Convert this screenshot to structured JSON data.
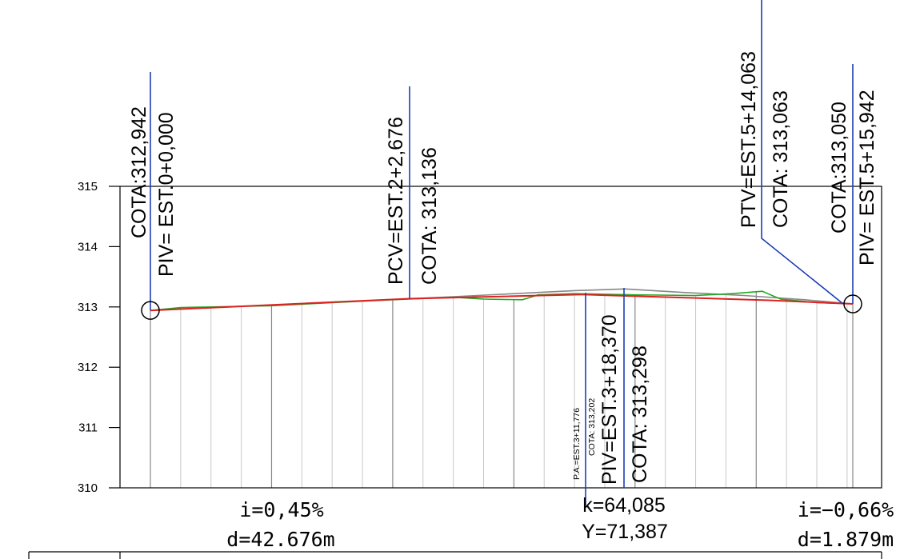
{
  "chart_data": {
    "type": "line",
    "title": "",
    "xlabel": "",
    "ylabel": "",
    "ylim": [
      310,
      315
    ],
    "y_ticks": [
      "315",
      "314",
      "313",
      "312",
      "311",
      "310"
    ],
    "grid": true,
    "series": [
      {
        "color": "#dd2222",
        "points": [
          [
            0,
            312.942
          ],
          [
            42.676,
            313.136
          ],
          [
            71.3,
            313.205
          ],
          [
            102.09,
            313.11
          ],
          [
            115.942,
            313.05
          ]
        ]
      },
      {
        "color": "#22aa22",
        "points": [
          [
            0,
            312.942
          ],
          [
            5,
            312.99
          ],
          [
            10,
            313.0
          ],
          [
            20,
            313.02
          ],
          [
            30,
            313.07
          ],
          [
            40,
            313.12
          ],
          [
            50,
            313.16
          ],
          [
            55,
            313.13
          ],
          [
            61.4,
            313.12
          ],
          [
            64,
            313.2
          ],
          [
            70,
            313.22
          ],
          [
            80,
            313.2
          ],
          [
            90,
            313.19
          ],
          [
            96,
            313.22
          ],
          [
            101,
            313.26
          ],
          [
            104,
            313.13
          ],
          [
            110,
            313.07
          ],
          [
            115.942,
            313.05
          ]
        ]
      },
      {
        "color": "#888888",
        "points": [
          [
            42.676,
            313.136
          ],
          [
            50,
            313.17
          ],
          [
            60,
            313.22
          ],
          [
            70,
            313.27
          ],
          [
            78.37,
            313.298
          ],
          [
            88,
            313.24
          ],
          [
            98,
            313.19
          ],
          [
            108,
            313.12
          ],
          [
            115.942,
            313.05
          ]
        ]
      }
    ],
    "markers": [
      {
        "label_cota": "COTA:312,942",
        "label_station": "PIV= EST.0+0,000"
      },
      {
        "label_station": "PCV=EST.2+2,676",
        "label_cota": "COTA: 313,136"
      },
      {
        "label_station": "PIV=EST.3+18,370",
        "label_cota": "COTA: 313,298"
      },
      {
        "label_station": "PTV=EST.5+14,063",
        "label_cota": "COTA: 313,063"
      },
      {
        "label_cota": "COTA:313,050",
        "label_station": "PIV= EST.5+15,942"
      }
    ],
    "low_point": {
      "label_station": "P.A.=EST.3+11,776",
      "label_cota": "COTA: 313,202"
    },
    "segments": [
      {
        "slope": "i=0,45%",
        "distance": "d=42.676m"
      },
      {
        "slope": "i=−0,66%",
        "distance": "d=1.879m"
      }
    ],
    "curve": {
      "k": "k=64,085",
      "y": "Y=71,387"
    }
  },
  "colors": {
    "marker_line": "#1f3fb4",
    "grid": "#c8c8c8",
    "major_grid": "#888888"
  }
}
